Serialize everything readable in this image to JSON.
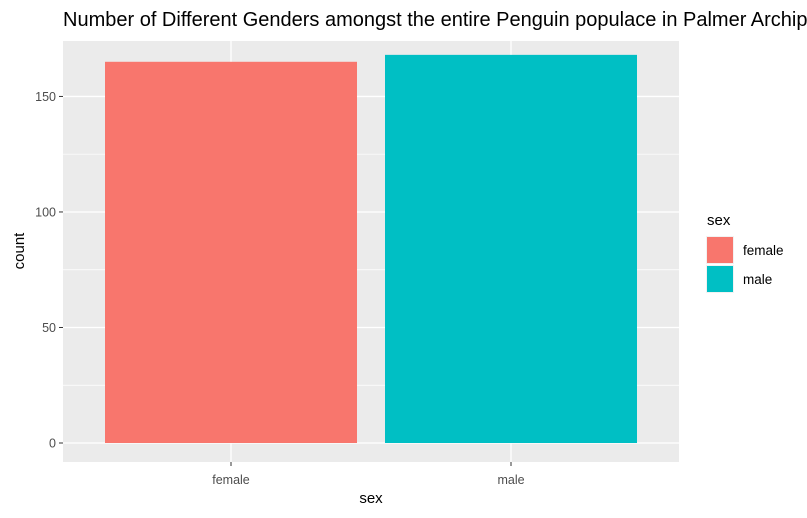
{
  "chart_data": {
    "type": "bar",
    "title": "Number of Different Genders amongst the entire Penguin populace in Palmer Archipelago",
    "xlabel": "sex",
    "ylabel": "count",
    "categories": [
      "female",
      "male"
    ],
    "values": [
      165,
      168
    ],
    "colors": [
      "#F8766D",
      "#00BFC4"
    ],
    "ylim": [
      0,
      174
    ],
    "yticks": [
      0,
      50,
      100,
      150
    ],
    "grid": true,
    "legend": {
      "title": "sex",
      "position": "right",
      "entries": [
        {
          "label": "female",
          "color": "#F8766D"
        },
        {
          "label": "male",
          "color": "#00BFC4"
        }
      ]
    },
    "panel_background": "#EBEBEB",
    "grid_color": "#FFFFFF"
  }
}
